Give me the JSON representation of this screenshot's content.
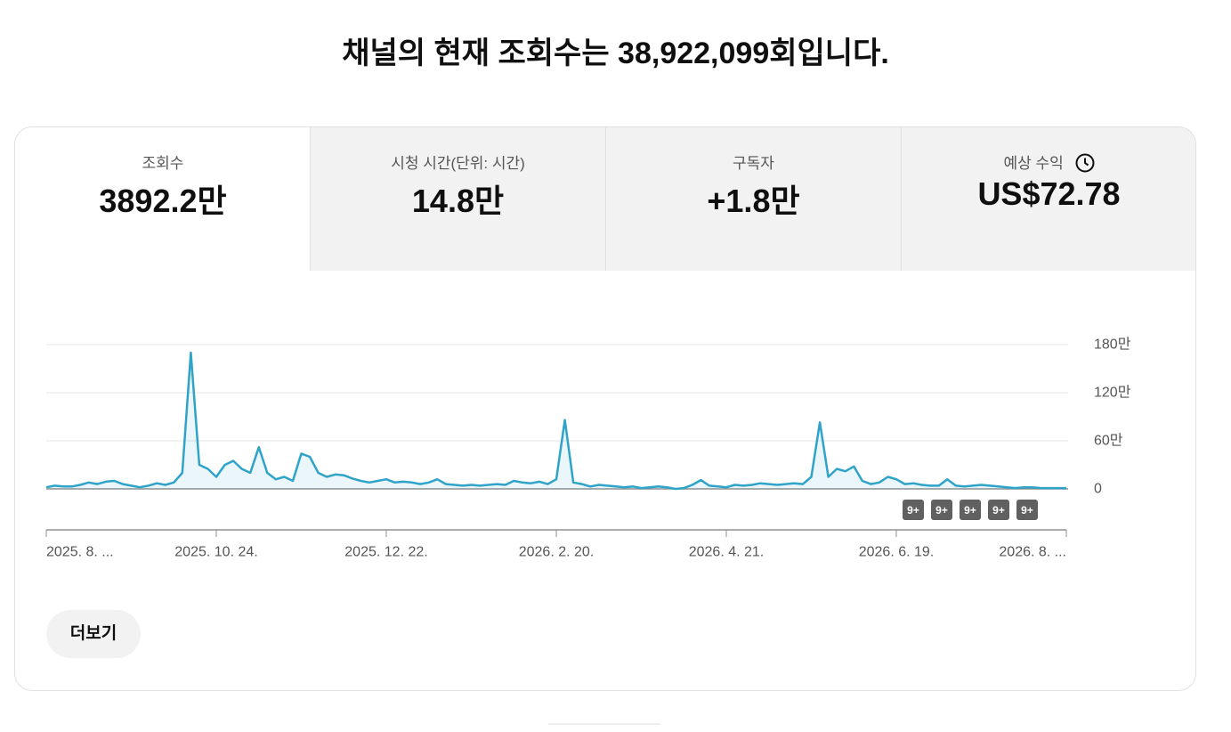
{
  "header": {
    "title": "채널의 현재 조회수는 38,922,099회입니다."
  },
  "tabs": [
    {
      "label": "조회수",
      "value": "3892.2만"
    },
    {
      "label": "시청 시간(단위: 시간)",
      "value": "14.8만"
    },
    {
      "label": "구독자",
      "value": "+1.8만"
    },
    {
      "label": "예상 수익",
      "value": "US$72.78"
    }
  ],
  "chart_data": {
    "type": "line",
    "color": "#2fa3c8",
    "categories": [
      "2025. 8. ...",
      null,
      null,
      null,
      null,
      null,
      null,
      null,
      null,
      null,
      null,
      null,
      null,
      null,
      null,
      null,
      null,
      null,
      null,
      null,
      "2025. 10. 24.",
      null,
      null,
      null,
      null,
      null,
      null,
      null,
      null,
      null,
      null,
      null,
      null,
      null,
      null,
      null,
      null,
      null,
      null,
      null,
      "2025. 12. 22.",
      null,
      null,
      null,
      null,
      null,
      null,
      null,
      null,
      null,
      null,
      null,
      null,
      null,
      null,
      null,
      null,
      null,
      null,
      null,
      "2026. 2. 20.",
      null,
      null,
      null,
      null,
      null,
      null,
      null,
      null,
      null,
      null,
      null,
      null,
      null,
      null,
      null,
      null,
      null,
      null,
      null,
      "2026. 4. 21.",
      null,
      null,
      null,
      null,
      null,
      null,
      null,
      null,
      null,
      null,
      null,
      null,
      null,
      null,
      null,
      null,
      null,
      null,
      null,
      "2026. 6. 19.",
      null,
      null,
      null,
      null,
      null,
      null,
      null,
      null,
      null,
      null,
      null,
      null,
      null,
      null,
      null,
      null,
      null,
      null,
      null,
      "2026. 8. ..."
    ],
    "values": [
      20000,
      40000,
      30000,
      30000,
      50000,
      80000,
      60000,
      90000,
      100000,
      60000,
      40000,
      20000,
      40000,
      70000,
      50000,
      80000,
      200000,
      1700000,
      300000,
      250000,
      150000,
      300000,
      350000,
      250000,
      200000,
      520000,
      200000,
      120000,
      150000,
      100000,
      440000,
      400000,
      200000,
      150000,
      180000,
      170000,
      130000,
      100000,
      80000,
      100000,
      120000,
      80000,
      90000,
      80000,
      60000,
      80000,
      120000,
      60000,
      50000,
      40000,
      50000,
      40000,
      50000,
      60000,
      50000,
      100000,
      80000,
      70000,
      90000,
      60000,
      120000,
      860000,
      80000,
      60000,
      30000,
      50000,
      40000,
      30000,
      20000,
      30000,
      10000,
      20000,
      30000,
      20000,
      0,
      10000,
      50000,
      110000,
      40000,
      30000,
      20000,
      50000,
      40000,
      50000,
      70000,
      60000,
      50000,
      60000,
      70000,
      60000,
      150000,
      830000,
      150000,
      250000,
      220000,
      280000,
      100000,
      60000,
      80000,
      150000,
      120000,
      60000,
      70000,
      50000,
      40000,
      40000,
      120000,
      40000,
      30000,
      40000,
      50000,
      40000,
      30000,
      20000,
      10000,
      20000,
      20000,
      10000,
      10000,
      10000,
      10000
    ],
    "ylim": [
      0,
      1800000
    ],
    "yticks": [
      0,
      {
        "value": 600000,
        "label": "60만"
      },
      {
        "value": 1200000,
        "label": "120만"
      },
      {
        "value": 1800000,
        "label": "180만"
      }
    ],
    "grid": true,
    "annotations": [
      "9+",
      "9+",
      "9+",
      "9+",
      "9+"
    ]
  },
  "button": {
    "label": "더보기"
  }
}
